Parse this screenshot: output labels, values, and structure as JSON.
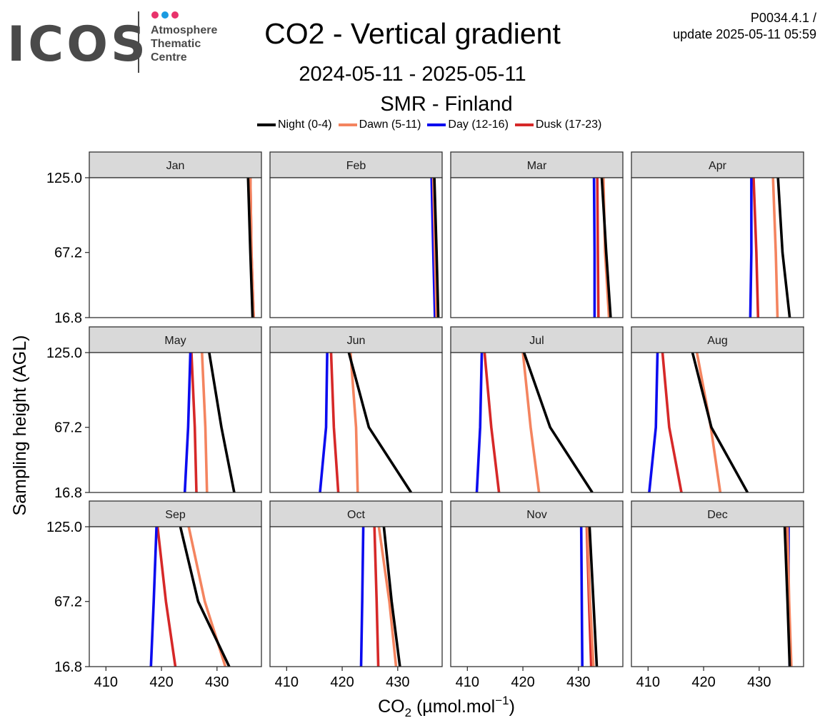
{
  "header": {
    "logo_text": "ICOS",
    "logo_subtext": [
      "Atmosphere",
      "Thematic",
      "Centre"
    ],
    "title": "CO2 - Vertical gradient",
    "subtitle": "2024-05-11 - 2025-05-11",
    "station": "SMR - Finland",
    "version_line1": "P0034.4.1 /",
    "version_line2": "update  2025-05-11 05:59"
  },
  "colors": {
    "logo_dots": [
      "#e8336b",
      "#1a9be0",
      "#e8336b"
    ],
    "logo_gray": "#4a4a4a",
    "panel_strip": "#d9d9d9"
  },
  "chart_data": {
    "type": "line",
    "orientation": "vertical-profile",
    "ylabel": "Sampling height (AGL)",
    "xlabel": "CO2 (µmol.mol-1)",
    "xlim": [
      407,
      438
    ],
    "x_ticks": [
      410,
      420,
      430
    ],
    "y_ticks": [
      16.8,
      67.2,
      125.0
    ],
    "heights": [
      16.8,
      67.2,
      125.0
    ],
    "grid": false,
    "legend_position": "top",
    "series_styles": [
      {
        "name": "Night (0-4)",
        "color": "#000000"
      },
      {
        "name": "Dawn (5-11)",
        "color": "#f4845f"
      },
      {
        "name": "Day (12-16)",
        "color": "#0b0bef"
      },
      {
        "name": "Dusk (17-23)",
        "color": "#d62828"
      }
    ],
    "panels": [
      {
        "label": "Jan",
        "series": [
          {
            "name": "Night (0-4)",
            "values": [
              436.4,
              436.0,
              435.6
            ]
          },
          {
            "name": "Dawn (5-11)",
            "values": [
              436.6,
              436.2,
              436.0
            ]
          },
          {
            "name": "Day (12-16)",
            "values": [
              436.5,
              436.1,
              435.8
            ]
          },
          {
            "name": "Dusk (17-23)",
            "values": [
              436.6,
              436.2,
              436.0
            ]
          }
        ]
      },
      {
        "label": "Feb",
        "series": [
          {
            "name": "Night (0-4)",
            "values": [
              437.3,
              437.0,
              436.6
            ]
          },
          {
            "name": "Dawn (5-11)",
            "values": [
              437.0,
              436.7,
              436.4
            ]
          },
          {
            "name": "Day (12-16)",
            "values": [
              436.7,
              436.4,
              436.1
            ]
          },
          {
            "name": "Dusk (17-23)",
            "values": [
              436.9,
              436.6,
              436.2
            ]
          }
        ]
      },
      {
        "label": "Mar",
        "series": [
          {
            "name": "Night (0-4)",
            "values": [
              435.8,
              435.0,
              434.2
            ]
          },
          {
            "name": "Dawn (5-11)",
            "values": [
              435.5,
              434.8,
              434.5
            ]
          },
          {
            "name": "Day (12-16)",
            "values": [
              432.9,
              432.9,
              432.8
            ]
          },
          {
            "name": "Dusk (17-23)",
            "values": [
              433.6,
              433.5,
              433.4
            ]
          }
        ]
      },
      {
        "label": "Apr",
        "series": [
          {
            "name": "Night (0-4)",
            "values": [
              435.5,
              434.2,
              433.4
            ]
          },
          {
            "name": "Dawn (5-11)",
            "values": [
              433.3,
              433.0,
              432.5
            ]
          },
          {
            "name": "Day (12-16)",
            "values": [
              428.4,
              428.6,
              428.6
            ]
          },
          {
            "name": "Dusk (17-23)",
            "values": [
              429.8,
              429.5,
              429.0
            ]
          }
        ]
      },
      {
        "label": "May",
        "series": [
          {
            "name": "Night (0-4)",
            "values": [
              433.1,
              430.8,
              428.6
            ]
          },
          {
            "name": "Dawn (5-11)",
            "values": [
              428.2,
              427.9,
              427.3
            ]
          },
          {
            "name": "Day (12-16)",
            "values": [
              424.2,
              424.8,
              425.2
            ]
          },
          {
            "name": "Dusk (17-23)",
            "values": [
              426.3,
              426.0,
              425.4
            ]
          }
        ]
      },
      {
        "label": "Jun",
        "series": [
          {
            "name": "Night (0-4)",
            "values": [
              432.4,
              424.8,
              421.2
            ]
          },
          {
            "name": "Dawn (5-11)",
            "values": [
              422.8,
              422.5,
              421.5
            ]
          },
          {
            "name": "Day (12-16)",
            "values": [
              416.0,
              417.1,
              417.3
            ]
          },
          {
            "name": "Dusk (17-23)",
            "values": [
              419.3,
              418.5,
              418.0
            ]
          }
        ]
      },
      {
        "label": "Jul",
        "series": [
          {
            "name": "Night (0-4)",
            "values": [
              432.5,
              424.9,
              420.2
            ]
          },
          {
            "name": "Dawn (5-11)",
            "values": [
              422.9,
              421.4,
              420.0
            ]
          },
          {
            "name": "Day (12-16)",
            "values": [
              411.7,
              412.3,
              412.6
            ]
          },
          {
            "name": "Dusk (17-23)",
            "values": [
              415.7,
              414.3,
              413.1
            ]
          }
        ]
      },
      {
        "label": "Aug",
        "series": [
          {
            "name": "Night (0-4)",
            "values": [
              427.9,
              421.4,
              418.0
            ]
          },
          {
            "name": "Dawn (5-11)",
            "values": [
              423.0,
              421.3,
              418.8
            ]
          },
          {
            "name": "Day (12-16)",
            "values": [
              410.2,
              411.4,
              411.7
            ]
          },
          {
            "name": "Dusk (17-23)",
            "values": [
              416.0,
              413.8,
              412.6
            ]
          }
        ]
      },
      {
        "label": "Sep",
        "series": [
          {
            "name": "Night (0-4)",
            "values": [
              432.2,
              426.6,
              423.4
            ]
          },
          {
            "name": "Dawn (5-11)",
            "values": [
              431.5,
              427.8,
              424.9
            ]
          },
          {
            "name": "Day (12-16)",
            "values": [
              418.1,
              418.6,
              419.1
            ]
          },
          {
            "name": "Dusk (17-23)",
            "values": [
              422.5,
              420.8,
              419.3
            ]
          }
        ]
      },
      {
        "label": "Oct",
        "series": [
          {
            "name": "Night (0-4)",
            "values": [
              430.4,
              428.9,
              427.5
            ]
          },
          {
            "name": "Dawn (5-11)",
            "values": [
              429.7,
              428.5,
              426.6
            ]
          },
          {
            "name": "Day (12-16)",
            "values": [
              423.4,
              423.6,
              423.8
            ]
          },
          {
            "name": "Dusk (17-23)",
            "values": [
              426.5,
              426.2,
              425.8
            ]
          }
        ]
      },
      {
        "label": "Nov",
        "series": [
          {
            "name": "Night (0-4)",
            "values": [
              433.3,
              432.7,
              432.0
            ]
          },
          {
            "name": "Dawn (5-11)",
            "values": [
              432.7,
              432.1,
              431.6
            ]
          },
          {
            "name": "Day (12-16)",
            "values": [
              430.7,
              430.6,
              430.5
            ]
          },
          {
            "name": "Dusk (17-23)",
            "values": [
              432.3,
              431.9,
              431.5
            ]
          }
        ]
      },
      {
        "label": "Dec",
        "series": [
          {
            "name": "Night (0-4)",
            "values": [
              435.5,
              435.1,
              434.6
            ]
          },
          {
            "name": "Dawn (5-11)",
            "values": [
              435.8,
              435.4,
              435.1
            ]
          },
          {
            "name": "Day (12-16)",
            "values": [
              435.5,
              435.3,
              435.3
            ]
          },
          {
            "name": "Dusk (17-23)",
            "values": [
              435.7,
              435.3,
              434.9
            ]
          }
        ]
      }
    ]
  }
}
